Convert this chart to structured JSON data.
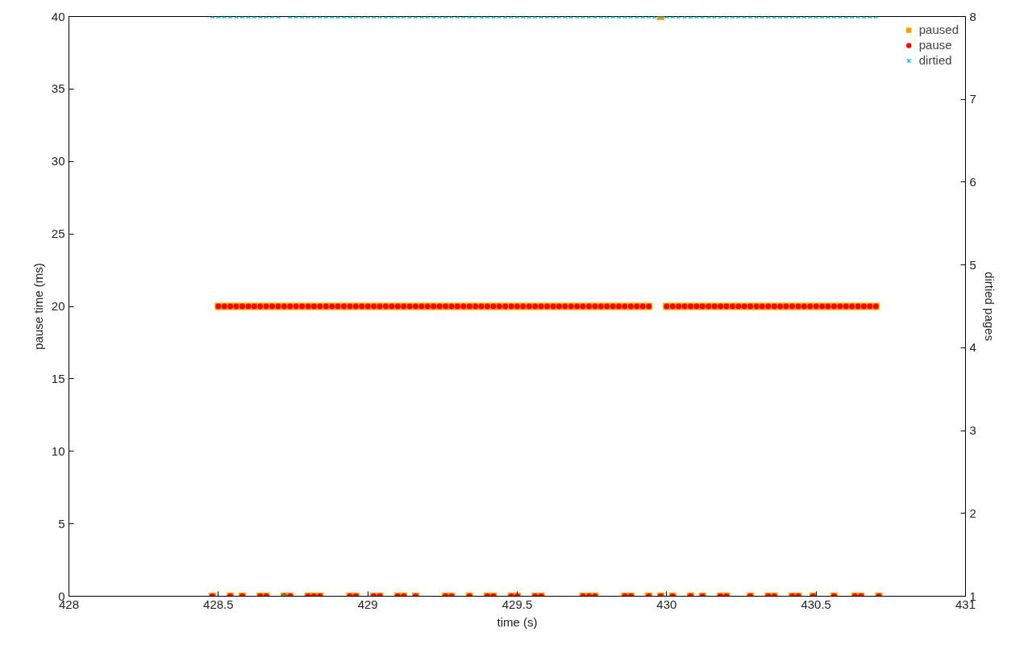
{
  "chart_data": {
    "type": "scatter",
    "xlabel": "time (s)",
    "ylabel": "pause time (ms)",
    "y2label": "dirtied pages",
    "xlim": [
      428,
      431
    ],
    "xticks": [
      428,
      {
        "value": 428.5,
        "label": "428.5"
      },
      429,
      {
        "value": 429.5,
        "label": "429.5"
      },
      430,
      {
        "value": 430.5,
        "label": "430.5"
      },
      431
    ],
    "ylim": [
      0,
      40
    ],
    "yticks": [
      0,
      5,
      10,
      15,
      20,
      25,
      30,
      35,
      40
    ],
    "y2lim": [
      1,
      8
    ],
    "y2ticks": [
      1,
      2,
      3,
      4,
      5,
      6,
      7,
      8
    ],
    "grid": false,
    "legend": "top right",
    "series": [
      {
        "name": "paused",
        "color": "#f5a300",
        "marker": "square",
        "x": [
          428.5,
          428.52,
          428.54,
          428.56,
          428.58,
          428.6,
          428.62,
          428.64,
          428.66,
          428.68,
          428.7,
          428.72,
          428.74,
          428.76,
          428.78,
          428.8,
          428.82,
          428.84,
          428.86,
          428.88,
          428.9,
          428.92,
          428.94,
          428.96,
          428.98,
          429.0,
          429.02,
          429.04,
          429.06,
          429.08,
          429.1,
          429.12,
          429.14,
          429.16,
          429.18,
          429.2,
          429.22,
          429.24,
          429.26,
          429.28,
          429.3,
          429.32,
          429.34,
          429.36,
          429.38,
          429.4,
          429.42,
          429.44,
          429.46,
          429.48,
          429.5,
          429.52,
          429.54,
          429.56,
          429.58,
          429.6,
          429.62,
          429.64,
          429.66,
          429.68,
          429.7,
          429.72,
          429.74,
          429.76,
          429.78,
          429.8,
          429.82,
          429.84,
          429.86,
          429.88,
          429.9,
          429.92,
          429.94,
          430.0,
          430.02,
          430.04,
          430.06,
          430.08,
          430.1,
          430.12,
          430.14,
          430.16,
          430.18,
          430.2,
          430.22,
          430.24,
          430.26,
          430.28,
          430.3,
          430.32,
          430.34,
          430.36,
          430.38,
          430.4,
          430.42,
          430.44,
          430.46,
          430.48,
          430.5,
          430.52,
          430.54,
          430.56,
          430.58,
          430.6,
          430.62,
          430.64,
          430.66,
          430.68,
          430.7,
          428.48,
          428.54,
          428.58,
          428.64,
          428.66,
          428.72,
          428.74,
          428.8,
          428.82,
          428.84,
          428.94,
          428.96,
          429.02,
          429.04,
          429.1,
          429.12,
          429.16,
          429.26,
          429.28,
          429.34,
          429.4,
          429.42,
          429.48,
          429.5,
          429.56,
          429.58,
          429.72,
          429.74,
          429.76,
          429.86,
          429.88,
          429.94,
          429.98,
          430.02,
          430.08,
          430.12,
          430.18,
          430.2,
          430.28,
          430.34,
          430.36,
          430.42,
          430.44,
          430.49,
          430.56,
          430.63,
          430.65,
          430.71,
          429.98
        ],
        "values": [
          20,
          20,
          20,
          20,
          20,
          20,
          20,
          20,
          20,
          20,
          20,
          20,
          20,
          20,
          20,
          20,
          20,
          20,
          20,
          20,
          20,
          20,
          20,
          20,
          20,
          20,
          20,
          20,
          20,
          20,
          20,
          20,
          20,
          20,
          20,
          20,
          20,
          20,
          20,
          20,
          20,
          20,
          20,
          20,
          20,
          20,
          20,
          20,
          20,
          20,
          20,
          20,
          20,
          20,
          20,
          20,
          20,
          20,
          20,
          20,
          20,
          20,
          20,
          20,
          20,
          20,
          20,
          20,
          20,
          20,
          20,
          20,
          20,
          20,
          20,
          20,
          20,
          20,
          20,
          20,
          20,
          20,
          20,
          20,
          20,
          20,
          20,
          20,
          20,
          20,
          20,
          20,
          20,
          20,
          20,
          20,
          20,
          20,
          20,
          20,
          20,
          20,
          20,
          20,
          20,
          20,
          20,
          20,
          20,
          0,
          0,
          0,
          0,
          0,
          0,
          0,
          0,
          0,
          0,
          0,
          0,
          0,
          0,
          0,
          0,
          0,
          0,
          0,
          0,
          0,
          0,
          0,
          0,
          0,
          0,
          0,
          0,
          0,
          0,
          0,
          0,
          0,
          0,
          0,
          0,
          0,
          0,
          0,
          0,
          0,
          0,
          0,
          0,
          0,
          0,
          0,
          0,
          40
        ]
      },
      {
        "name": "pause",
        "color": "#ff0000",
        "marker": "circle",
        "x": [
          428.5,
          428.52,
          428.54,
          428.56,
          428.58,
          428.6,
          428.62,
          428.64,
          428.66,
          428.68,
          428.7,
          428.72,
          428.74,
          428.76,
          428.78,
          428.8,
          428.82,
          428.84,
          428.86,
          428.88,
          428.9,
          428.92,
          428.94,
          428.96,
          428.98,
          429.0,
          429.02,
          429.04,
          429.06,
          429.08,
          429.1,
          429.12,
          429.14,
          429.16,
          429.18,
          429.2,
          429.22,
          429.24,
          429.26,
          429.28,
          429.3,
          429.32,
          429.34,
          429.36,
          429.38,
          429.4,
          429.42,
          429.44,
          429.46,
          429.48,
          429.5,
          429.52,
          429.54,
          429.56,
          429.58,
          429.6,
          429.62,
          429.64,
          429.66,
          429.68,
          429.7,
          429.72,
          429.74,
          429.76,
          429.78,
          429.8,
          429.82,
          429.84,
          429.86,
          429.88,
          429.9,
          429.92,
          429.94,
          430.0,
          430.02,
          430.04,
          430.06,
          430.08,
          430.1,
          430.12,
          430.14,
          430.16,
          430.18,
          430.2,
          430.22,
          430.24,
          430.26,
          430.28,
          430.3,
          430.32,
          430.34,
          430.36,
          430.38,
          430.4,
          430.42,
          430.44,
          430.46,
          430.48,
          430.5,
          430.52,
          430.54,
          430.56,
          430.58,
          430.6,
          430.62,
          430.64,
          430.66,
          430.68,
          430.7,
          428.48,
          428.54,
          428.58,
          428.64,
          428.66,
          428.72,
          428.74,
          428.8,
          428.82,
          428.84,
          428.94,
          428.96,
          429.02,
          429.04,
          429.1,
          429.12,
          429.16,
          429.26,
          429.28,
          429.34,
          429.4,
          429.42,
          429.48,
          429.5,
          429.56,
          429.58,
          429.72,
          429.74,
          429.76,
          429.86,
          429.88,
          429.94,
          429.98,
          430.02,
          430.08,
          430.12,
          430.18,
          430.2,
          430.28,
          430.34,
          430.36,
          430.42,
          430.44,
          430.49,
          430.56,
          430.63,
          430.65,
          430.71
        ],
        "values": [
          20,
          20,
          20,
          20,
          20,
          20,
          20,
          20,
          20,
          20,
          20,
          20,
          20,
          20,
          20,
          20,
          20,
          20,
          20,
          20,
          20,
          20,
          20,
          20,
          20,
          20,
          20,
          20,
          20,
          20,
          20,
          20,
          20,
          20,
          20,
          20,
          20,
          20,
          20,
          20,
          20,
          20,
          20,
          20,
          20,
          20,
          20,
          20,
          20,
          20,
          20,
          20,
          20,
          20,
          20,
          20,
          20,
          20,
          20,
          20,
          20,
          20,
          20,
          20,
          20,
          20,
          20,
          20,
          20,
          20,
          20,
          20,
          20,
          20,
          20,
          20,
          20,
          20,
          20,
          20,
          20,
          20,
          20,
          20,
          20,
          20,
          20,
          20,
          20,
          20,
          20,
          20,
          20,
          20,
          20,
          20,
          20,
          20,
          20,
          20,
          20,
          20,
          20,
          20,
          20,
          20,
          20,
          20,
          20,
          0,
          0,
          0,
          0,
          0,
          0,
          0,
          0,
          0,
          0,
          0,
          0,
          0,
          0,
          0,
          0,
          0,
          0,
          0,
          0,
          0,
          0,
          0,
          0,
          0,
          0,
          0,
          0,
          0,
          0,
          0,
          0,
          0,
          0,
          0,
          0,
          0,
          0,
          0,
          0,
          0,
          0,
          0,
          0,
          0,
          0,
          0,
          0
        ]
      },
      {
        "name": "dirtied",
        "color": "#00cccc",
        "marker": "cross",
        "axis": "y2",
        "x": [
          428.48,
          428.5,
          428.52,
          428.54,
          428.56,
          428.58,
          428.6,
          428.62,
          428.64,
          428.66,
          428.68,
          428.7,
          428.72,
          428.74,
          428.76,
          428.78,
          428.8,
          428.82,
          428.84,
          428.86,
          428.88,
          428.9,
          428.92,
          428.94,
          428.96,
          428.98,
          429.0,
          429.02,
          429.04,
          429.06,
          429.08,
          429.1,
          429.12,
          429.14,
          429.16,
          429.18,
          429.2,
          429.22,
          429.24,
          429.26,
          429.28,
          429.3,
          429.32,
          429.34,
          429.36,
          429.38,
          429.4,
          429.42,
          429.44,
          429.46,
          429.48,
          429.5,
          429.52,
          429.54,
          429.56,
          429.58,
          429.6,
          429.62,
          429.64,
          429.66,
          429.68,
          429.7,
          429.72,
          429.74,
          429.76,
          429.78,
          429.8,
          429.82,
          429.84,
          429.86,
          429.88,
          429.9,
          429.92,
          429.94,
          429.96,
          429.98,
          430.0,
          430.02,
          430.04,
          430.06,
          430.08,
          430.1,
          430.12,
          430.14,
          430.16,
          430.18,
          430.2,
          430.22,
          430.24,
          430.26,
          430.28,
          430.3,
          430.32,
          430.34,
          430.36,
          430.38,
          430.4,
          430.42,
          430.44,
          430.46,
          430.48,
          430.5,
          430.52,
          430.54,
          430.56,
          430.58,
          430.6,
          430.62,
          430.64,
          430.66,
          430.68,
          430.7
        ],
        "values": [
          8,
          8,
          8,
          8,
          8,
          8,
          8,
          8,
          8,
          8,
          8,
          8,
          1,
          8,
          8,
          8,
          8,
          8,
          8,
          8,
          8,
          8,
          8,
          8,
          8,
          8,
          8,
          8,
          8,
          8,
          8,
          8,
          8,
          8,
          8,
          8,
          8,
          8,
          8,
          8,
          8,
          8,
          8,
          8,
          8,
          8,
          8,
          8,
          8,
          8,
          8,
          8,
          8,
          8,
          8,
          8,
          8,
          8,
          8,
          8,
          8,
          8,
          8,
          8,
          8,
          8,
          8,
          8,
          8,
          8,
          8,
          8,
          8,
          8,
          8,
          8,
          8,
          8,
          8,
          8,
          8,
          8,
          8,
          8,
          8,
          8,
          8,
          8,
          8,
          8,
          8,
          8,
          8,
          8,
          8,
          8,
          8,
          8,
          8,
          8,
          8,
          8,
          8,
          8,
          8,
          8,
          8,
          8,
          8,
          8,
          8,
          8
        ]
      }
    ]
  }
}
